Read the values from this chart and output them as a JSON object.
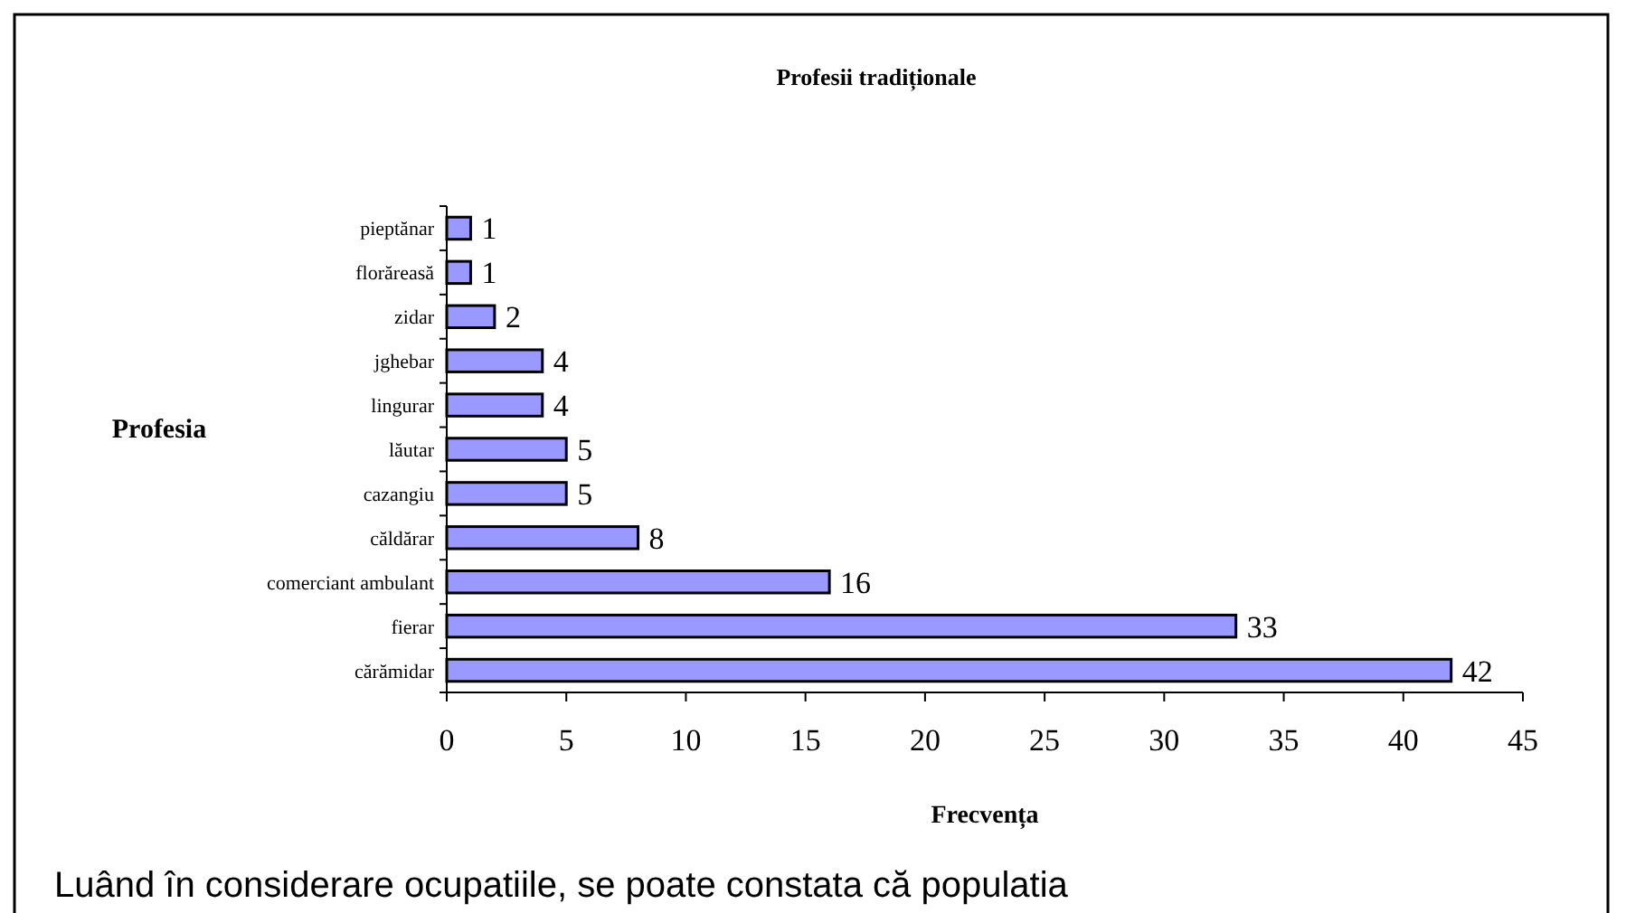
{
  "chart_data": {
    "type": "bar",
    "orientation": "horizontal",
    "title": "Profesii tradiționale",
    "xlabel": "Frecvența",
    "ylabel": "Profesia",
    "categories": [
      "pieptănar",
      "florăreasă",
      "zidar",
      "jghebar",
      "lingurar",
      "lăutar",
      "cazangiu",
      "căldărar",
      "comerciant ambulant",
      "fierar",
      "cărămidar"
    ],
    "values": [
      1,
      1,
      2,
      4,
      4,
      5,
      5,
      8,
      16,
      33,
      42
    ],
    "color": "#9999ff",
    "xlim": [
      0,
      45
    ],
    "xticks": [
      0,
      5,
      10,
      15,
      20,
      25,
      30,
      35,
      40,
      45
    ],
    "data_labels": true,
    "annotations": [
      "Luând în considerare ocupatiile, se poate constata că populatia"
    ]
  }
}
